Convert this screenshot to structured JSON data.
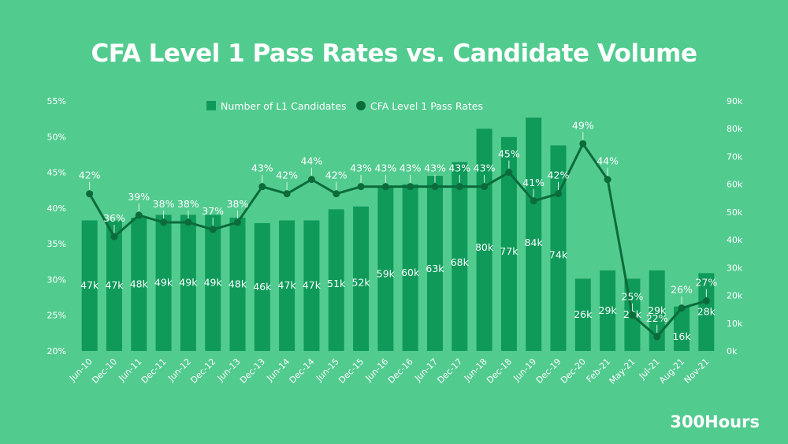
{
  "page": {
    "title": "CFA Level 1 Pass Rates vs. Candidate Volume",
    "brand": "300Hours"
  },
  "chart_data": {
    "type": "bar+line",
    "title": "CFA Level 1 Pass Rates vs. Candidate Volume",
    "categories": [
      "Jun-10",
      "Dec-10",
      "Jun-11",
      "Dec-11",
      "Jun-12",
      "Dec-12",
      "Jun-13",
      "Dec-13",
      "Jun-14",
      "Dec-14",
      "Jun-15",
      "Dec-15",
      "Jun-16",
      "Dec-16",
      "Jun-17",
      "Dec-17",
      "Jun-18",
      "Dec-18",
      "Jun-19",
      "Dec-19",
      "Dec-20",
      "Feb-21",
      "May-21",
      "Jul-21",
      "Aug-21",
      "Nov-21"
    ],
    "series": [
      {
        "name": "Number of L1 Candidates",
        "kind": "bar",
        "axis": "right",
        "color": "#0f9a5a",
        "values": [
          47000,
          47000,
          48000,
          49000,
          49000,
          49000,
          48000,
          46000,
          47000,
          47000,
          51000,
          52000,
          59000,
          60000,
          63000,
          68000,
          80000,
          77000,
          84000,
          74000,
          26000,
          29000,
          26000,
          29000,
          16000,
          28000
        ],
        "labels": [
          "47k",
          "47k",
          "48k",
          "49k",
          "49k",
          "49k",
          "48k",
          "46k",
          "47k",
          "47k",
          "51k",
          "52k",
          "59k",
          "60k",
          "63k",
          "68k",
          "80k",
          "77k",
          "84k",
          "74k",
          "26k",
          "29k",
          "26k",
          "29k",
          "16k",
          "28k"
        ]
      },
      {
        "name": "CFA Level 1 Pass Rates",
        "kind": "line",
        "axis": "left",
        "color": "#0c6b3b",
        "values": [
          42,
          36,
          39,
          38,
          38,
          37,
          38,
          43,
          42,
          44,
          42,
          43,
          43,
          43,
          43,
          43,
          43,
          45,
          41,
          42,
          49,
          44,
          25,
          22,
          26,
          27
        ],
        "labels": [
          "42%",
          "36%",
          "39%",
          "38%",
          "38%",
          "37%",
          "38%",
          "43%",
          "42%",
          "44%",
          "42%",
          "43%",
          "43%",
          "43%",
          "43%",
          "43%",
          "43%",
          "45%",
          "41%",
          "42%",
          "49%",
          "44%",
          "25%",
          "22%",
          "26%",
          "27%"
        ]
      }
    ],
    "y_left": {
      "min": 20,
      "max": 55,
      "ticks": [
        20,
        25,
        30,
        35,
        40,
        45,
        50,
        55
      ],
      "tick_labels": [
        "20%",
        "25%",
        "30%",
        "35%",
        "40%",
        "45%",
        "50%",
        "55%"
      ]
    },
    "y_right": {
      "min": 0,
      "max": 90000,
      "ticks": [
        0,
        10000,
        20000,
        30000,
        40000,
        50000,
        60000,
        70000,
        80000,
        90000
      ],
      "tick_labels": [
        "0k",
        "10k",
        "20k",
        "30k",
        "40k",
        "50k",
        "60k",
        "70k",
        "80k",
        "90k"
      ]
    },
    "legend": {
      "position": "top-center",
      "items": [
        "Number of L1 Candidates",
        "CFA Level 1 Pass Rates"
      ]
    },
    "grid": false
  }
}
